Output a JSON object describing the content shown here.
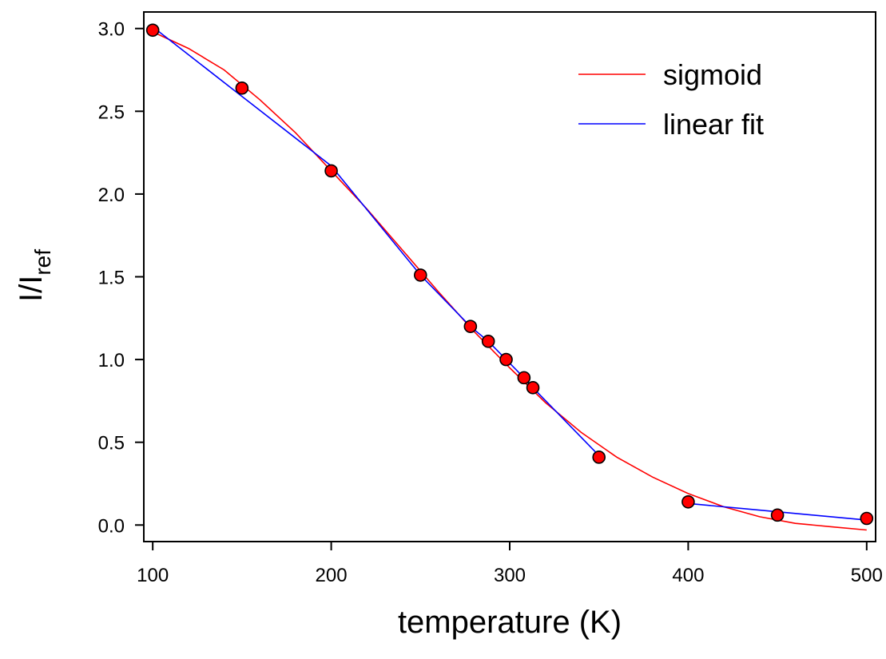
{
  "chart_data": {
    "type": "line",
    "xlabel": "temperature (K)",
    "ylabel": {
      "main": "I/I",
      "subscript": "ref"
    },
    "xlim": [
      95,
      505
    ],
    "ylim": [
      -0.1,
      3.1
    ],
    "xticks": [
      100,
      200,
      300,
      400,
      500
    ],
    "yticks": [
      0.0,
      0.5,
      1.0,
      1.5,
      2.0,
      2.5,
      3.0
    ],
    "ytick_labels": [
      "0.0",
      "0.5",
      "1.0",
      "1.5",
      "2.0",
      "2.5",
      "3.0"
    ],
    "grid": false,
    "legend_position": "top-right",
    "points": {
      "x": [
        100,
        150,
        200,
        250,
        278,
        288,
        298,
        308,
        313,
        350,
        400,
        450,
        500
      ],
      "y": [
        2.99,
        2.64,
        2.14,
        1.51,
        1.2,
        1.11,
        1.0,
        0.89,
        0.83,
        0.41,
        0.14,
        0.06,
        0.04
      ],
      "color": "#ff0000",
      "edge_color": "#000000"
    },
    "series": [
      {
        "name": "sigmoid",
        "color": "#ff0000",
        "x": [
          100,
          120,
          140,
          160,
          180,
          200,
          220,
          240,
          260,
          280,
          300,
          320,
          340,
          360,
          380,
          400,
          420,
          440,
          460,
          480,
          500
        ],
        "y": [
          2.98,
          2.88,
          2.75,
          2.57,
          2.37,
          2.14,
          1.91,
          1.66,
          1.41,
          1.17,
          0.95,
          0.74,
          0.56,
          0.41,
          0.29,
          0.19,
          0.11,
          0.05,
          0.01,
          -0.01,
          -0.03
        ]
      },
      {
        "name": "linear fit",
        "color": "#0000ff",
        "x": [
          100,
          150,
          200,
          250,
          278,
          288,
          298,
          308,
          313,
          350,
          null,
          400,
          450,
          500
        ],
        "y": [
          3.01,
          2.59,
          2.17,
          1.51,
          1.2,
          1.11,
          1.0,
          0.89,
          0.83,
          0.42,
          null,
          0.13,
          0.08,
          0.03
        ]
      }
    ]
  }
}
